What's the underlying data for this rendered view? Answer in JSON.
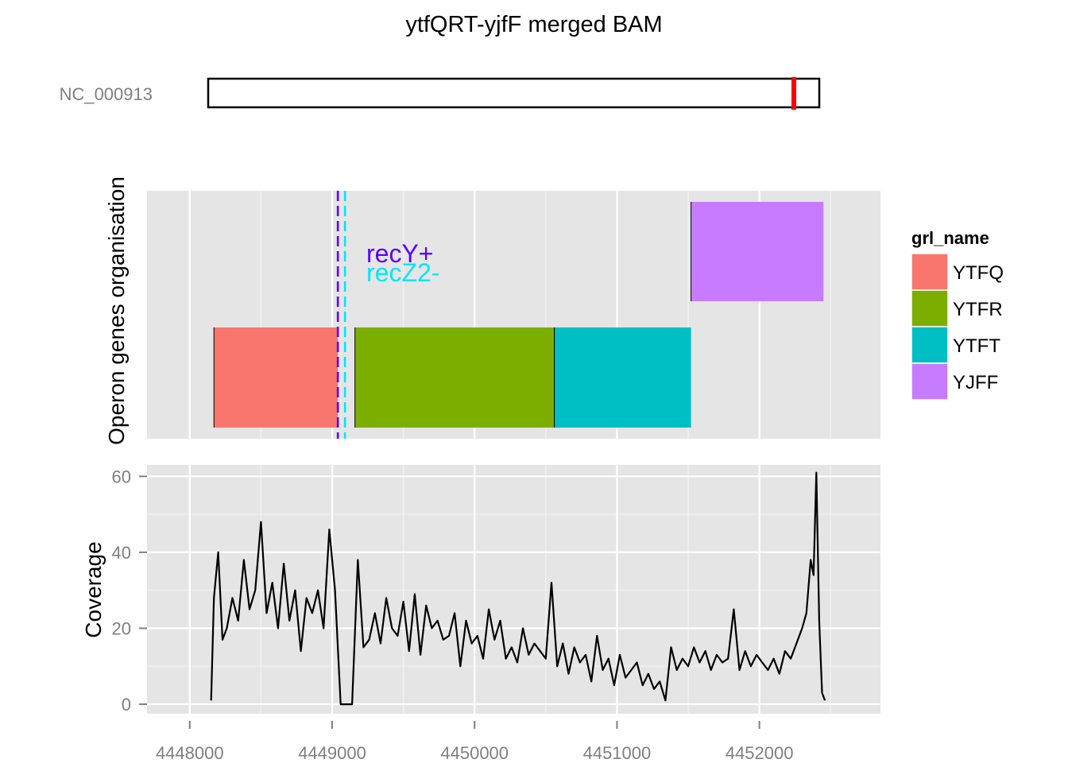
{
  "chart_data": {
    "title": "ytfQRT-yjfF merged BAM",
    "type": "track-plot",
    "ideogram": {
      "chromosome_label": "NC_000913",
      "highlight_color": "#ff0000"
    },
    "x_axis": {
      "range": [
        4447700,
        4452850
      ],
      "ticks": [
        4448000,
        4449000,
        4450000,
        4451000,
        4452000
      ],
      "tick_labels": [
        "4448000",
        "4449000",
        "4450000",
        "4451000",
        "4452000"
      ],
      "minor_gridlines": [
        4448500,
        4449500,
        4450500,
        4451500,
        4452500
      ]
    },
    "panels": [
      {
        "id": "operon",
        "ylabel": "Operon genes organisation",
        "type": "gene-blocks",
        "genes": [
          {
            "name": "YTFQ",
            "start": 4448170,
            "end": 4449040,
            "row": 0,
            "color": "#f8766d"
          },
          {
            "name": "YTFR",
            "start": 4449160,
            "end": 4450560,
            "row": 0,
            "color": "#7cae00"
          },
          {
            "name": "YTFT",
            "start": 4450560,
            "end": 4451520,
            "row": 0,
            "color": "#00bfc4"
          },
          {
            "name": "YJFF",
            "start": 4451520,
            "end": 4452450,
            "row": 1,
            "color": "#c77cff"
          }
        ],
        "markers": [
          {
            "label": "recY+",
            "position": 4449040,
            "color": "#5b00ff"
          },
          {
            "label": "recZ2-",
            "position": 4449090,
            "color": "#00e6ff"
          }
        ]
      },
      {
        "id": "coverage",
        "ylabel": "Coverage",
        "type": "line",
        "ylim": [
          -2.5,
          63
        ],
        "yticks": [
          0,
          20,
          40,
          60
        ],
        "ytick_labels": [
          "0",
          "20",
          "40",
          "60"
        ],
        "series": [
          {
            "line_color": "#000000",
            "x": [
              4448150,
              4448170,
              4448200,
              4448230,
              4448260,
              4448300,
              4448340,
              4448380,
              4448420,
              4448460,
              4448500,
              4448540,
              4448580,
              4448620,
              4448660,
              4448700,
              4448740,
              4448780,
              4448820,
              4448860,
              4448900,
              4448940,
              4448980,
              4449020,
              4449060,
              4449100,
              4449140,
              4449180,
              4449220,
              4449260,
              4449300,
              4449340,
              4449380,
              4449420,
              4449460,
              4449500,
              4449540,
              4449580,
              4449620,
              4449660,
              4449700,
              4449740,
              4449780,
              4449820,
              4449860,
              4449900,
              4449940,
              4449980,
              4450020,
              4450060,
              4450100,
              4450140,
              4450180,
              4450220,
              4450260,
              4450300,
              4450340,
              4450380,
              4450420,
              4450460,
              4450500,
              4450540,
              4450580,
              4450620,
              4450660,
              4450700,
              4450740,
              4450780,
              4450820,
              4450860,
              4450900,
              4450940,
              4450980,
              4451020,
              4451060,
              4451100,
              4451140,
              4451180,
              4451220,
              4451260,
              4451300,
              4451340,
              4451380,
              4451420,
              4451460,
              4451500,
              4451540,
              4451580,
              4451620,
              4451660,
              4451700,
              4451740,
              4451780,
              4451820,
              4451860,
              4451900,
              4451940,
              4451980,
              4452020,
              4452060,
              4452100,
              4452140,
              4452180,
              4452220,
              4452260,
              4452300,
              4452330,
              4452360,
              4452380,
              4452400,
              4452420,
              4452440,
              4452460
            ],
            "y": [
              1,
              28,
              40,
              17,
              20,
              28,
              22,
              38,
              25,
              30,
              48,
              24,
              32,
              20,
              37,
              22,
              30,
              14,
              28,
              24,
              30,
              20,
              46,
              30,
              0,
              0,
              0,
              38,
              15,
              17,
              24,
              16,
              28,
              20,
              18,
              27,
              14,
              29,
              13,
              26,
              20,
              22,
              17,
              18,
              24,
              10,
              22,
              16,
              18,
              12,
              25,
              17,
              22,
              12,
              15,
              11,
              20,
              13,
              16,
              14,
              12,
              32,
              10,
              16,
              8,
              15,
              11,
              13,
              6,
              18,
              9,
              12,
              5,
              13,
              7,
              9,
              11,
              5,
              8,
              4,
              6,
              1,
              15,
              9,
              12,
              10,
              15,
              11,
              14,
              9,
              13,
              11,
              12,
              25,
              9,
              14,
              10,
              13,
              11,
              9,
              12,
              8,
              14,
              12,
              16,
              20,
              24,
              38,
              34,
              61,
              22,
              3,
              1
            ]
          }
        ]
      }
    ],
    "legend": {
      "title": "grl_name",
      "position": "right",
      "entries": [
        {
          "label": "YTFQ",
          "color": "#f8766d"
        },
        {
          "label": "YTFR",
          "color": "#7cae00"
        },
        {
          "label": "YTFT",
          "color": "#00bfc4"
        },
        {
          "label": "YJFF",
          "color": "#c77cff"
        }
      ]
    },
    "grid": true,
    "panel_background": "#e5e5e5"
  }
}
